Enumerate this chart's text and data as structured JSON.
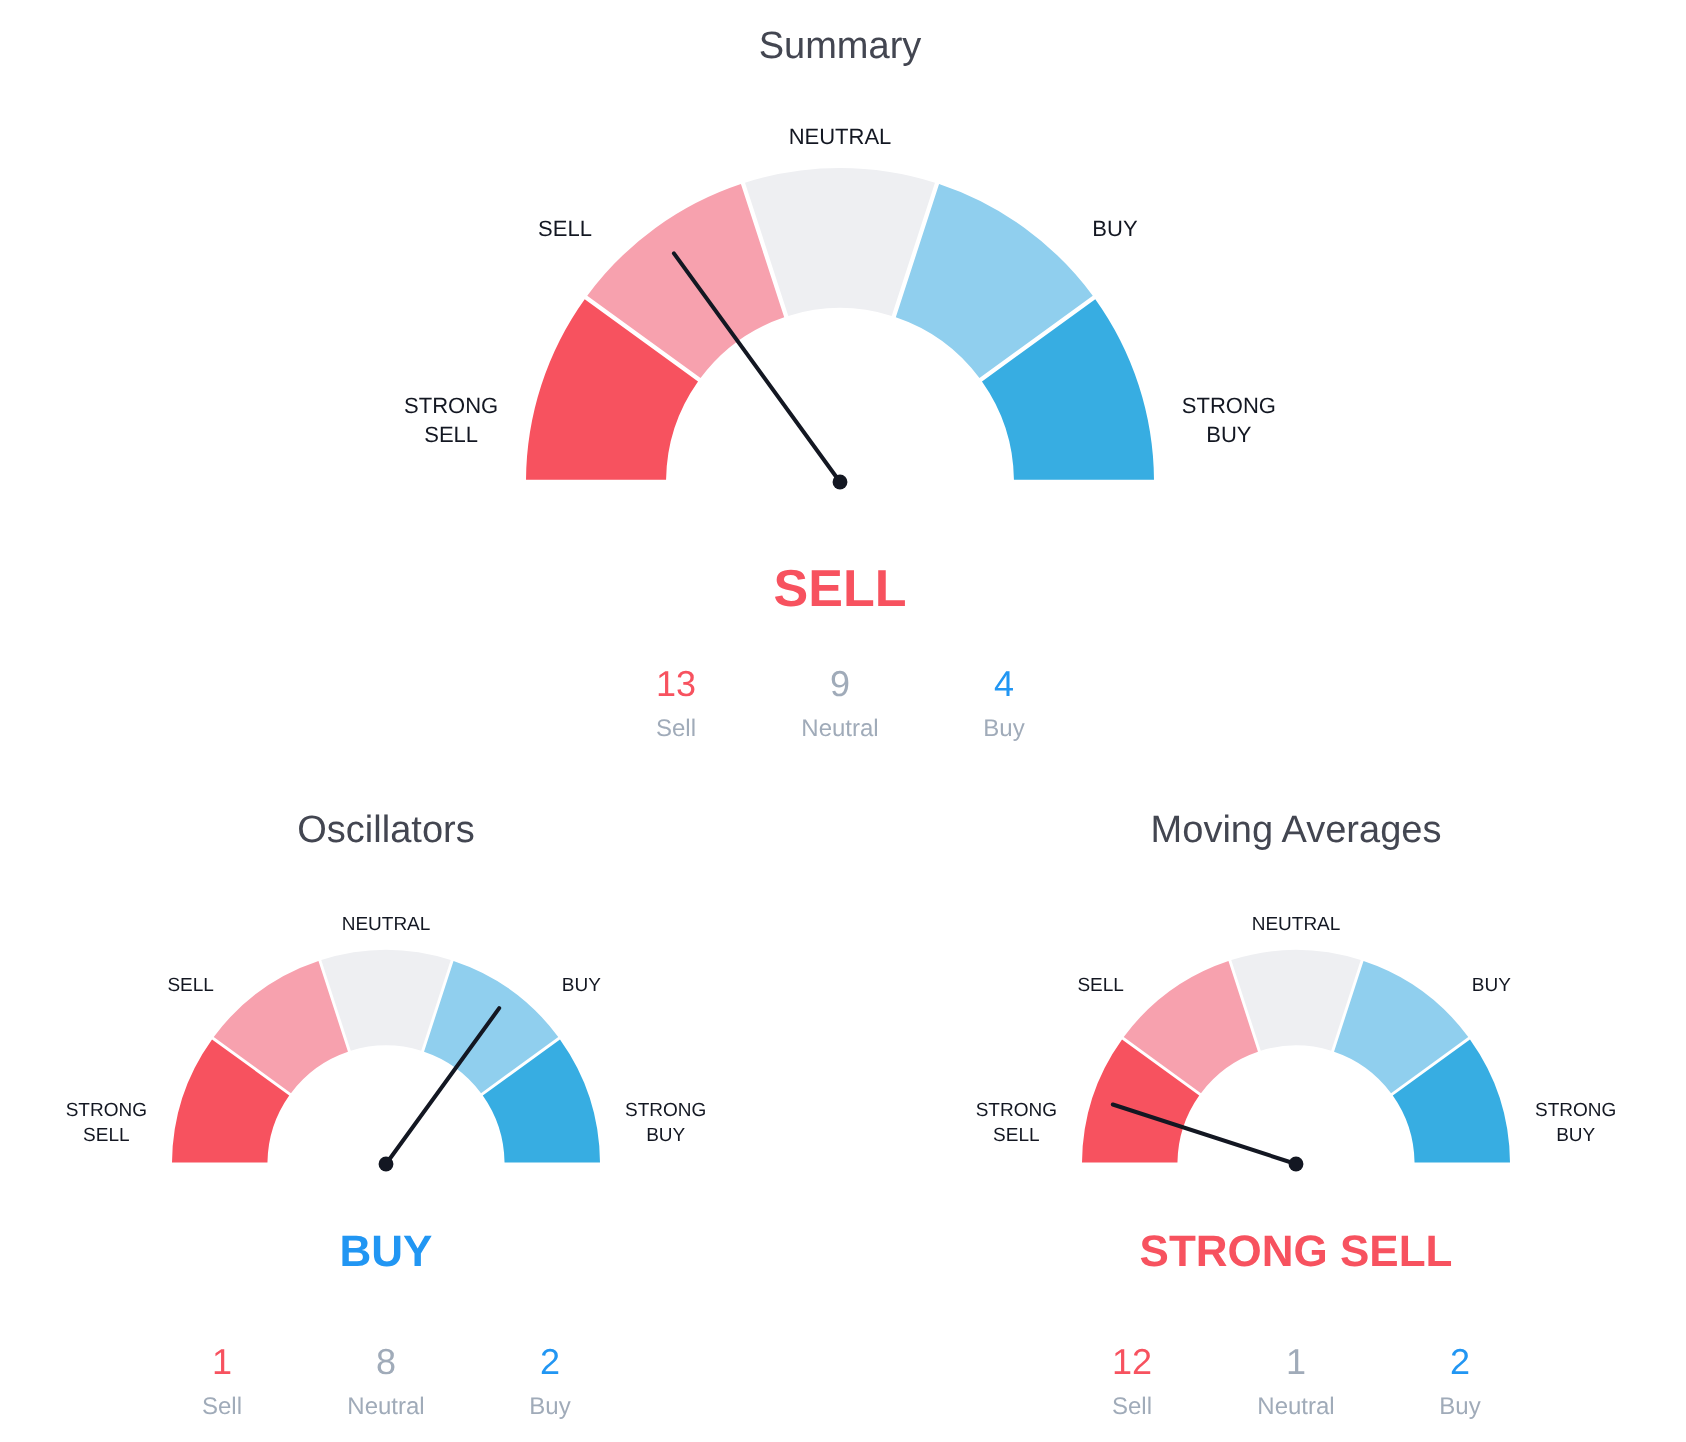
{
  "chart_data": [
    {
      "type": "donut",
      "title": "Summary",
      "categories": [
        "STRONG SELL",
        "SELL",
        "NEUTRAL",
        "BUY",
        "STRONG BUY"
      ],
      "values": [
        20,
        20,
        20,
        20,
        20
      ],
      "colors": [
        "#f7525f",
        "#f7a1ae",
        "#eeeff2",
        "#90cfee",
        "#37ade2"
      ],
      "needle": "SELL",
      "annotations": [
        "SELL",
        "13",
        "Sell",
        "9",
        "Neutral",
        "4",
        "Buy"
      ]
    },
    {
      "type": "donut",
      "title": "Oscillators",
      "categories": [
        "STRONG SELL",
        "SELL",
        "NEUTRAL",
        "BUY",
        "STRONG BUY"
      ],
      "values": [
        20,
        20,
        20,
        20,
        20
      ],
      "colors": [
        "#f7525f",
        "#f7a1ae",
        "#eeeff2",
        "#90cfee",
        "#37ade2"
      ],
      "needle": "BUY",
      "annotations": [
        "BUY",
        "1",
        "Sell",
        "8",
        "Neutral",
        "2",
        "Buy"
      ]
    },
    {
      "type": "donut",
      "title": "Moving Averages",
      "categories": [
        "STRONG SELL",
        "SELL",
        "NEUTRAL",
        "BUY",
        "STRONG BUY"
      ],
      "values": [
        20,
        20,
        20,
        20,
        20
      ],
      "colors": [
        "#f7525f",
        "#f7a1ae",
        "#eeeff2",
        "#90cfee",
        "#37ade2"
      ],
      "needle": "STRONG SELL",
      "annotations": [
        "STRONG SELL",
        "12",
        "Sell",
        "1",
        "Neutral",
        "2",
        "Buy"
      ]
    }
  ]
}
